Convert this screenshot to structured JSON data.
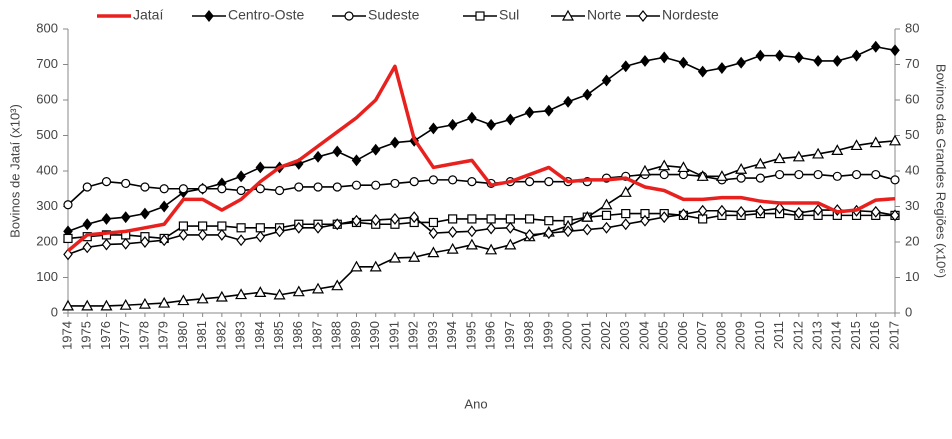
{
  "chart_data": {
    "type": "line",
    "x_label": "Ano",
    "y_label": "Bovinos de Jataí (x10³)",
    "y2_label": "Bovinos das Grandes Regiões (x10⁶)",
    "categories": [
      "1974",
      "1975",
      "1976",
      "1977",
      "1978",
      "1979",
      "1980",
      "1981",
      "1982",
      "1983",
      "1984",
      "1985",
      "1986",
      "1987",
      "1988",
      "1989",
      "1990",
      "1991",
      "1992",
      "1993",
      "1994",
      "1995",
      "1996",
      "1997",
      "1998",
      "1999",
      "2000",
      "2001",
      "2002",
      "2003",
      "2004",
      "2005",
      "2006",
      "2007",
      "2008",
      "2009",
      "2010",
      "2011",
      "2012",
      "2013",
      "2014",
      "2015",
      "2016",
      "2017"
    ],
    "ylim": [
      0,
      800
    ],
    "yticks": [
      0,
      100,
      200,
      300,
      400,
      500,
      600,
      700,
      800
    ],
    "y2lim": [
      0,
      80
    ],
    "y2ticks": [
      0,
      10,
      20,
      30,
      40,
      50,
      60,
      70,
      80
    ],
    "legend": "top",
    "series": [
      {
        "name": "Jataí",
        "color": "#e8211f",
        "marker": "none",
        "values": [
          175,
          220,
          225,
          230,
          240,
          250,
          320,
          320,
          290,
          320,
          370,
          410,
          430,
          470,
          510,
          550,
          600,
          695,
          490,
          410,
          420,
          430,
          360,
          370,
          390,
          410,
          370,
          375,
          375,
          380,
          355,
          345,
          320,
          320,
          325,
          325,
          315,
          310,
          310,
          310,
          285,
          290,
          318,
          322
        ]
      },
      {
        "name": "Centro-Oste",
        "color": "#000000",
        "axis": "y2",
        "marker": "diamond-filled",
        "values": [
          23,
          25,
          26.5,
          27,
          28,
          30,
          34,
          35,
          36.5,
          38.5,
          41,
          41,
          42,
          44,
          45.5,
          43,
          46,
          48,
          48.5,
          52,
          53,
          55,
          53,
          54.5,
          56.5,
          57,
          59.5,
          61.5,
          65.5,
          69.5,
          71,
          72,
          70.5,
          68,
          69,
          70.5,
          72.5,
          72.5,
          72,
          71,
          71,
          72.5,
          75,
          74
        ]
      },
      {
        "name": "Sudeste",
        "color": "#000000",
        "axis": "y2",
        "marker": "circle",
        "values": [
          30.5,
          35.5,
          37,
          36.5,
          35.5,
          35,
          35,
          35,
          35,
          34.5,
          35,
          34.5,
          35.5,
          35.5,
          35.5,
          36,
          36,
          36.5,
          37,
          37.5,
          37.5,
          37,
          36.5,
          37,
          37,
          37,
          37,
          37,
          38,
          38.5,
          39,
          39,
          39,
          38.5,
          37.5,
          38,
          38,
          39,
          39,
          39,
          38.5,
          39,
          39,
          37.5
        ]
      },
      {
        "name": "Sul",
        "color": "#000000",
        "axis": "y2",
        "marker": "square",
        "values": [
          21,
          21.5,
          22,
          22,
          21.5,
          21,
          24.5,
          24.5,
          24.5,
          24,
          24,
          24,
          25,
          25,
          25,
          25.5,
          25,
          25,
          25.5,
          25.5,
          26.5,
          26.5,
          26.5,
          26.5,
          26.5,
          26,
          26,
          27,
          27.5,
          28,
          28,
          28,
          27.5,
          26.5,
          27.5,
          27.5,
          28,
          28,
          27.5,
          27.5,
          27.5,
          27.5,
          27.5,
          27.5
        ]
      },
      {
        "name": "Norte",
        "color": "#000000",
        "axis": "y2",
        "marker": "triangle",
        "values": [
          2,
          2,
          2,
          2.2,
          2.5,
          2.8,
          3.5,
          4,
          4.5,
          5.2,
          5.8,
          5.1,
          6,
          6.8,
          7.7,
          13,
          13,
          15.5,
          15.7,
          17,
          18,
          19.2,
          17.8,
          19.2,
          21.5,
          22.8,
          24.5,
          27,
          30.5,
          34,
          40,
          41.5,
          41,
          38.5,
          38.5,
          40.5,
          42,
          43.5,
          44,
          44.8,
          45.8,
          47.2,
          48,
          48.5
        ]
      },
      {
        "name": "Nordeste",
        "color": "#000000",
        "axis": "y2",
        "marker": "diamond",
        "values": [
          16.5,
          18.5,
          19.3,
          19.5,
          20,
          20.5,
          22,
          22,
          22,
          20.5,
          21.5,
          23,
          24,
          24,
          25,
          26,
          26.2,
          26.5,
          27,
          22.5,
          22.8,
          23,
          23.8,
          24,
          22,
          22.5,
          23,
          23.5,
          24,
          25,
          26,
          27,
          27.8,
          28.8,
          28.8,
          28.5,
          28.8,
          29.5,
          28.2,
          29,
          29,
          28.8,
          28.5,
          27.5
        ]
      }
    ]
  }
}
